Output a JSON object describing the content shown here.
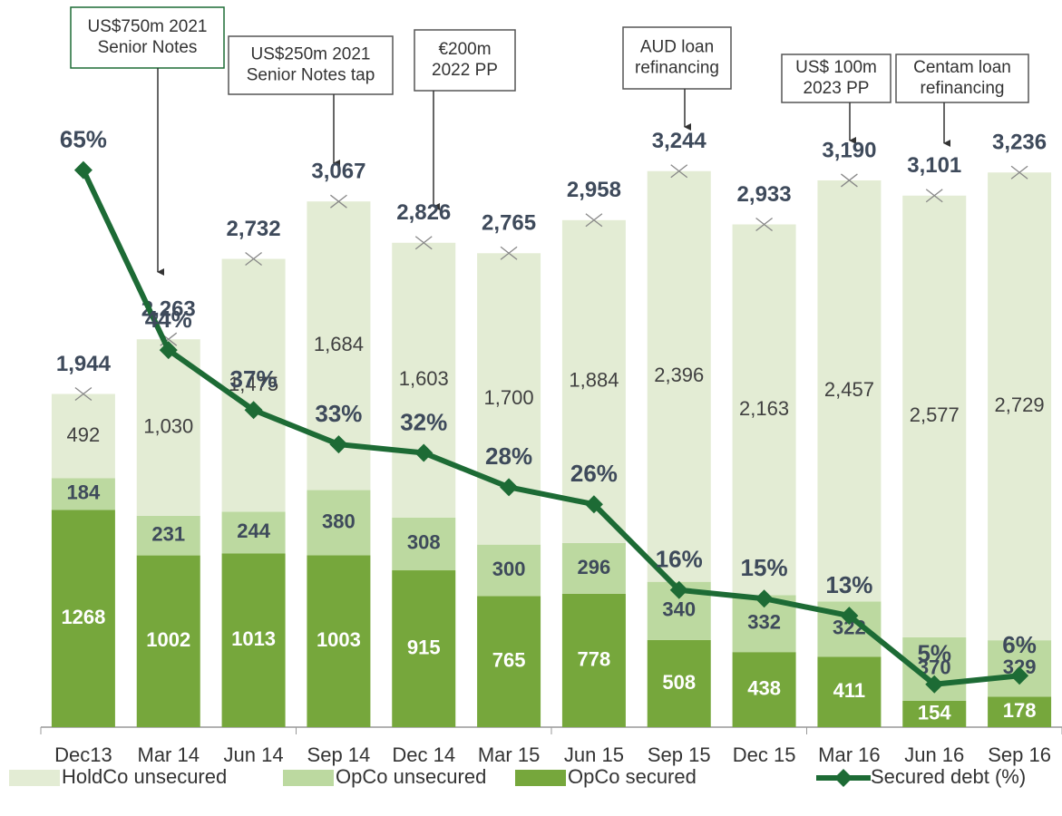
{
  "chart_data": {
    "type": "bar",
    "categories": [
      "Dec13",
      "Mar 14",
      "Jun 14",
      "Sep 14",
      "Dec 14",
      "Mar 15",
      "Jun 15",
      "Sep 15",
      "Dec 15",
      "Mar 16",
      "Jun 16",
      "Sep 16"
    ],
    "stacked": true,
    "ylim": [
      0,
      4200
    ],
    "y2lim": [
      0,
      84
    ],
    "series": [
      {
        "name": "OpCo secured",
        "color": "#76a73c",
        "values": [
          1268,
          1002,
          1013,
          1003,
          915,
          765,
          778,
          508,
          438,
          411,
          154,
          178
        ]
      },
      {
        "name": "OpCo unsecured",
        "color": "#bcd9a0",
        "values": [
          184,
          231,
          244,
          380,
          308,
          300,
          296,
          340,
          332,
          322,
          370,
          329
        ]
      },
      {
        "name": "HoldCo unsecured",
        "color": "#e3ecd4",
        "values": [
          492,
          1030,
          1475,
          1684,
          1603,
          1700,
          1884,
          2396,
          2163,
          2457,
          2577,
          2729
        ],
        "value_labels": [
          "492",
          "1,030",
          "1,475",
          "1,684",
          "1,603",
          "1,700",
          "1,884",
          "2,396",
          "2,163",
          "2,457",
          "2,577",
          "2,729"
        ]
      },
      {
        "name": "Secured debt (%)",
        "type": "line",
        "axis": "y2",
        "color": "#1d6b35",
        "values": [
          65,
          44,
          37,
          33,
          32,
          28,
          26,
          16,
          15,
          13,
          5,
          6
        ],
        "value_labels": [
          "65%",
          "44%",
          "37%",
          "33%",
          "32%",
          "28%",
          "26%",
          "16%",
          "15%",
          "13%",
          "5%",
          "6%"
        ]
      }
    ],
    "totals": {
      "values": [
        1944,
        2263,
        2732,
        3067,
        2826,
        2765,
        2958,
        3244,
        2933,
        3190,
        3101,
        3236
      ],
      "value_labels": [
        "1,944",
        "2,263",
        "2,732",
        "3,067",
        "2,826",
        "2,765",
        "2,958",
        "3,244",
        "2,933",
        "3,190",
        "3,101",
        "3,236"
      ]
    },
    "legend_order": [
      2,
      1,
      0,
      3
    ],
    "annotations": [
      [
        "US$750m 2021",
        "Senior Notes"
      ],
      [
        "US$250m 2021",
        "Senior Notes tap"
      ],
      [
        "€200m",
        "2022 PP"
      ],
      [
        "AUD loan",
        "refinancing"
      ],
      [
        "US$ 100m",
        "2023 PP"
      ],
      [
        "Centam loan",
        "refinancing"
      ]
    ]
  }
}
